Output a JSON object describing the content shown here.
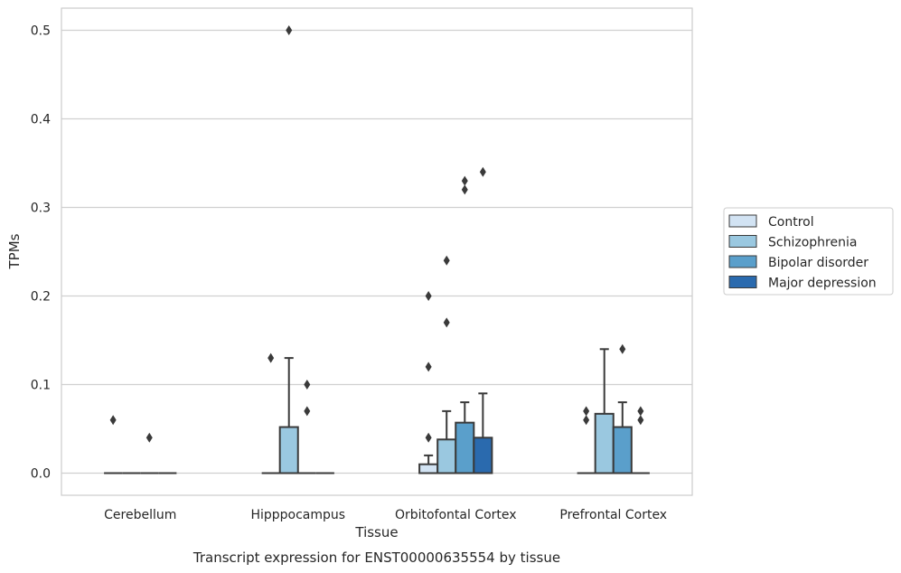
{
  "caption": "Transcript expression for ENST00000635554 by tissue",
  "chart_data": {
    "type": "boxplot",
    "xlabel": "Tissue",
    "ylabel": "TPMs",
    "ylim": [
      -0.025,
      0.525
    ],
    "yticks": [
      "0.0",
      "0.1",
      "0.2",
      "0.3",
      "0.4",
      "0.5"
    ],
    "ytick_values": [
      0,
      0.1,
      0.2,
      0.3,
      0.4,
      0.5
    ],
    "grid": "horizontal",
    "legend_position": "right",
    "categories": [
      "Cerebellum",
      "Hipppocampus",
      "Orbitofontal Cortex",
      "Prefrontal Cortex"
    ],
    "series": [
      {
        "name": "Control",
        "color": "#d2e3f3",
        "boxes": [
          {
            "q1": 0,
            "median": 0,
            "q3": 0,
            "whisker_low": 0,
            "whisker_high": 0,
            "outliers": [
              0.06
            ]
          },
          {
            "q1": 0,
            "median": 0,
            "q3": 0,
            "whisker_low": 0,
            "whisker_high": 0,
            "outliers": [
              0.13
            ]
          },
          {
            "q1": 0,
            "median": 0,
            "q3": 0.01,
            "whisker_low": 0,
            "whisker_high": 0.02,
            "outliers": [
              0.04,
              0.12,
              0.2
            ]
          },
          {
            "q1": 0,
            "median": 0,
            "q3": 0,
            "whisker_low": 0,
            "whisker_high": 0,
            "outliers": [
              0.06,
              0.07
            ]
          }
        ]
      },
      {
        "name": "Schizophrenia",
        "color": "#9ac8e0",
        "boxes": [
          {
            "q1": 0,
            "median": 0,
            "q3": 0,
            "whisker_low": 0,
            "whisker_high": 0,
            "outliers": []
          },
          {
            "q1": 0,
            "median": 0,
            "q3": 0.052,
            "whisker_low": 0,
            "whisker_high": 0.13,
            "outliers": [
              0.5
            ]
          },
          {
            "q1": 0,
            "median": 0,
            "q3": 0.038,
            "whisker_low": 0,
            "whisker_high": 0.07,
            "outliers": [
              0.17,
              0.24
            ]
          },
          {
            "q1": 0,
            "median": 0,
            "q3": 0.067,
            "whisker_low": 0,
            "whisker_high": 0.14,
            "outliers": []
          }
        ]
      },
      {
        "name": "Bipolar disorder",
        "color": "#5a9fcb",
        "boxes": [
          {
            "q1": 0,
            "median": 0,
            "q3": 0,
            "whisker_low": 0,
            "whisker_high": 0,
            "outliers": [
              0.04
            ]
          },
          {
            "q1": 0,
            "median": 0,
            "q3": 0,
            "whisker_low": 0,
            "whisker_high": 0,
            "outliers": [
              0.07,
              0.1
            ]
          },
          {
            "q1": 0,
            "median": 0,
            "q3": 0.057,
            "whisker_low": 0,
            "whisker_high": 0.08,
            "outliers": [
              0.32,
              0.33
            ]
          },
          {
            "q1": 0,
            "median": 0,
            "q3": 0.052,
            "whisker_low": 0,
            "whisker_high": 0.08,
            "outliers": [
              0.14
            ]
          }
        ]
      },
      {
        "name": "Major depression",
        "color": "#2a6aae",
        "boxes": [
          {
            "q1": 0,
            "median": 0,
            "q3": 0,
            "whisker_low": 0,
            "whisker_high": 0,
            "outliers": []
          },
          {
            "q1": 0,
            "median": 0,
            "q3": 0,
            "whisker_low": 0,
            "whisker_high": 0,
            "outliers": []
          },
          {
            "q1": 0,
            "median": 0,
            "q3": 0.04,
            "whisker_low": 0,
            "whisker_high": 0.09,
            "outliers": [
              0.34
            ]
          },
          {
            "q1": 0,
            "median": 0,
            "q3": 0,
            "whisker_low": 0,
            "whisker_high": 0,
            "outliers": [
              0.06,
              0.07
            ]
          }
        ]
      }
    ]
  }
}
